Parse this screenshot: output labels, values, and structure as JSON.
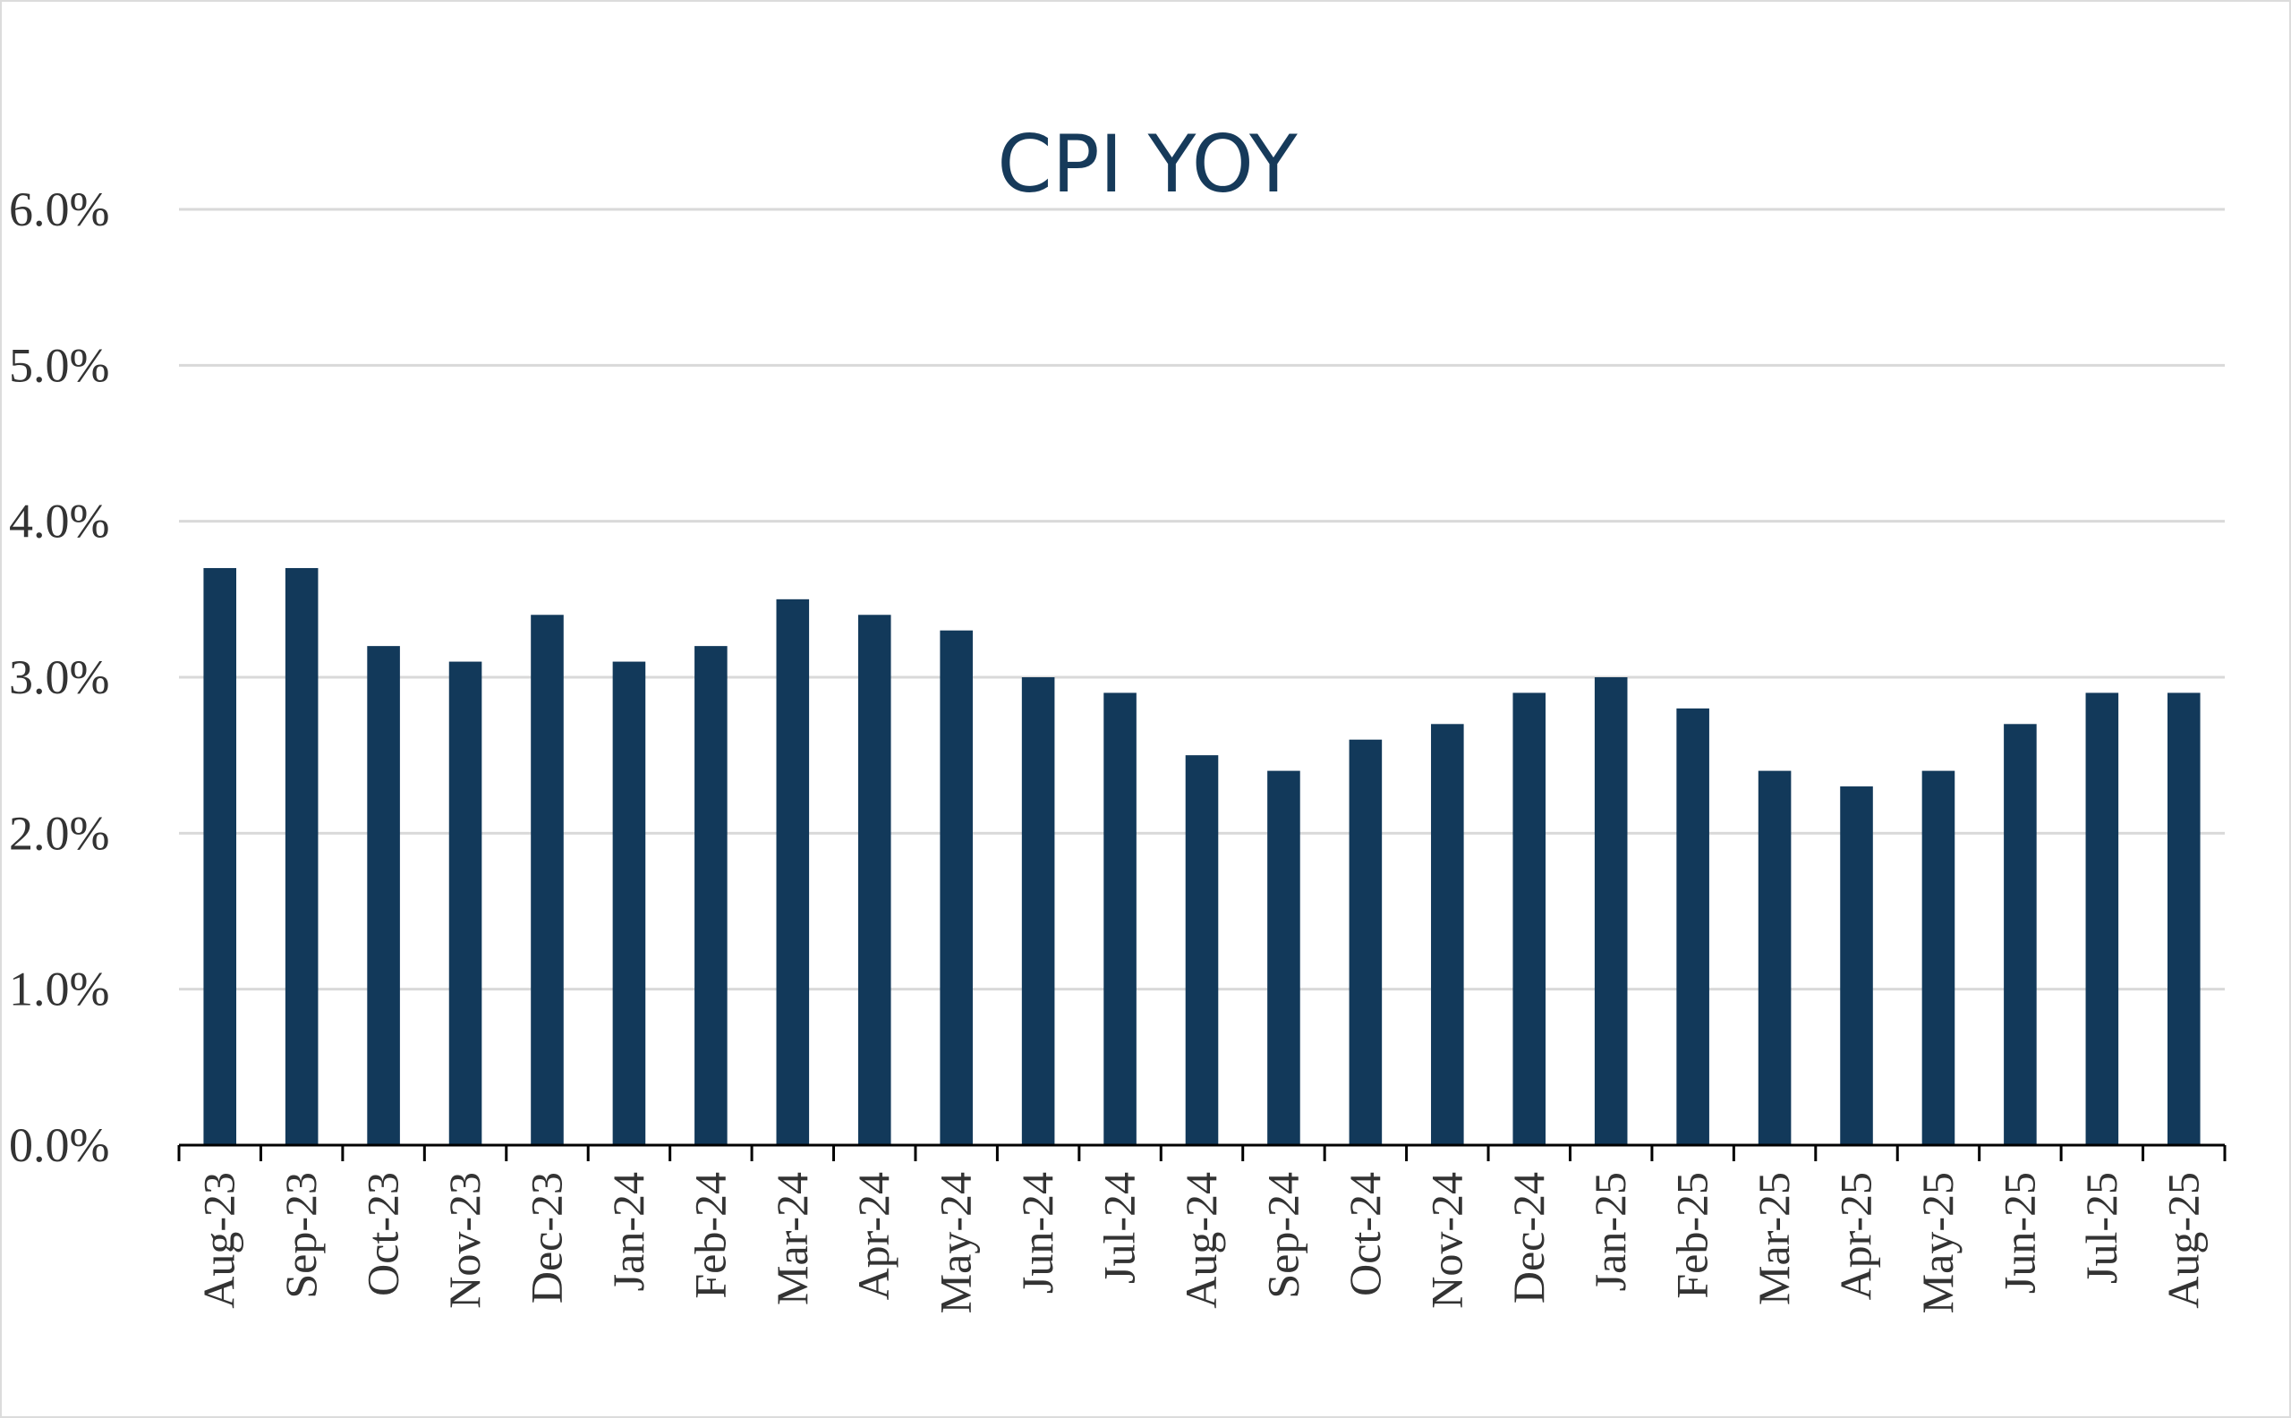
{
  "chart_data": {
    "type": "bar",
    "title": "CPI YOY",
    "xlabel": "",
    "ylabel": "",
    "categories": [
      "Aug-23",
      "Sep-23",
      "Oct-23",
      "Nov-23",
      "Dec-23",
      "Jan-24",
      "Feb-24",
      "Mar-24",
      "Apr-24",
      "May-24",
      "Jun-24",
      "Jul-24",
      "Aug-24",
      "Sep-24",
      "Oct-24",
      "Nov-24",
      "Dec-24",
      "Jan-25",
      "Feb-25",
      "Mar-25",
      "Apr-25",
      "May-25",
      "Jun-25",
      "Jul-25",
      "Aug-25"
    ],
    "values": [
      3.7,
      3.7,
      3.2,
      3.1,
      3.4,
      3.1,
      3.2,
      3.5,
      3.4,
      3.3,
      3.0,
      2.9,
      2.5,
      2.4,
      2.6,
      2.7,
      2.9,
      3.0,
      2.8,
      2.4,
      2.3,
      2.4,
      2.7,
      2.9,
      2.9
    ],
    "ylim": [
      0,
      6
    ],
    "yticks": [
      0,
      1,
      2,
      3,
      4,
      5,
      6
    ],
    "ytick_labels": [
      "0.0%",
      "1.0%",
      "2.0%",
      "3.0%",
      "4.0%",
      "5.0%",
      "6.0%"
    ],
    "grid": true,
    "legend": "none",
    "bar_color": "#12395a",
    "grid_color": "#d9d9d9"
  }
}
